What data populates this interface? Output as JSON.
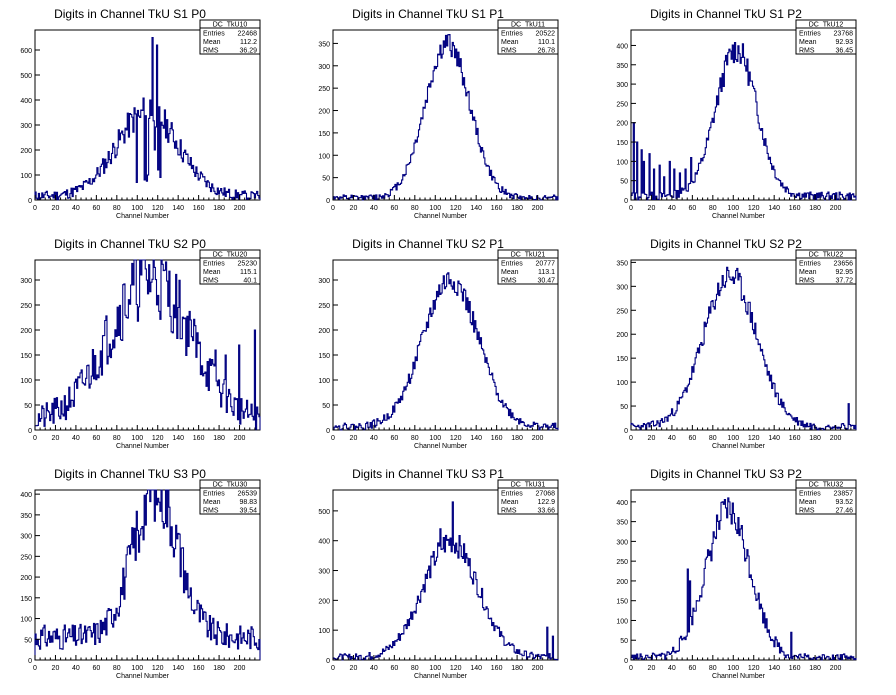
{
  "page": {
    "x_axis_label": "Channel Number",
    "stat_labels": [
      "Entries",
      "Mean",
      "RMS"
    ]
  },
  "chart_data": [
    {
      "type": "histogram",
      "title": "Digits in Channel TkU S1 P0",
      "xlabel": "Channel Number",
      "xlim": [
        0,
        220
      ],
      "ylim": [
        0,
        680
      ],
      "xticks": [
        0,
        20,
        40,
        60,
        80,
        100,
        120,
        140,
        160,
        180,
        200
      ],
      "yticks": [
        0,
        100,
        200,
        300,
        400,
        500,
        600
      ],
      "stats": {
        "name": "DC_TkU10",
        "entries": "22468",
        "mean": "112.2",
        "rms": "36.29"
      },
      "profile": {
        "shape": "gauss",
        "mu": 110,
        "sigma": 30,
        "peak": 340,
        "bg": 15,
        "noise": 45,
        "seed": 11,
        "spikes": [
          [
            100,
            70
          ],
          [
            103,
            330
          ],
          [
            107,
            80
          ],
          [
            109,
            75
          ],
          [
            111,
            100
          ],
          [
            113,
            400
          ],
          [
            115,
            650
          ],
          [
            117,
            200
          ],
          [
            119,
            620
          ],
          [
            121,
            120
          ],
          [
            123,
            90
          ]
        ]
      }
    },
    {
      "type": "histogram",
      "title": "Digits in Channel TkU S1 P1",
      "xlabel": "Channel Number",
      "xlim": [
        0,
        220
      ],
      "ylim": [
        0,
        380
      ],
      "xticks": [
        0,
        20,
        40,
        60,
        80,
        100,
        120,
        140,
        160,
        180,
        200
      ],
      "yticks": [
        0,
        50,
        100,
        150,
        200,
        250,
        300,
        350
      ],
      "stats": {
        "name": "DC_TkU11",
        "entries": "20522",
        "mean": "110.1",
        "rms": "26.78"
      },
      "profile": {
        "shape": "gauss",
        "mu": 112,
        "sigma": 22,
        "peak": 345,
        "bg": 4,
        "noise": 18,
        "seed": 12,
        "spikes": []
      }
    },
    {
      "type": "histogram",
      "title": "Digits in Channel TkU S1 P2",
      "xlabel": "Channel Number",
      "xlim": [
        0,
        220
      ],
      "ylim": [
        0,
        440
      ],
      "xticks": [
        0,
        20,
        40,
        60,
        80,
        100,
        120,
        140,
        160,
        180,
        200
      ],
      "yticks": [
        0,
        50,
        100,
        150,
        200,
        250,
        300,
        350,
        400
      ],
      "stats": {
        "name": "DC_TkU12",
        "entries": "23768",
        "mean": "92.93",
        "rms": "36.45"
      },
      "profile": {
        "shape": "gauss",
        "mu": 103,
        "sigma": 20,
        "peak": 380,
        "bg": 10,
        "noise": 25,
        "seed": 13,
        "spikes": [
          [
            3,
            200
          ],
          [
            6,
            150
          ],
          [
            10,
            130
          ],
          [
            13,
            100
          ],
          [
            18,
            120
          ],
          [
            22,
            80
          ],
          [
            28,
            90
          ],
          [
            33,
            60
          ],
          [
            38,
            100
          ],
          [
            42,
            80
          ],
          [
            48,
            70
          ],
          [
            53,
            80
          ],
          [
            59,
            110
          ]
        ]
      }
    },
    {
      "type": "histogram",
      "title": "Digits in Channel TkU S2 P0",
      "xlabel": "Channel Number",
      "xlim": [
        0,
        220
      ],
      "ylim": [
        0,
        340
      ],
      "xticks": [
        0,
        20,
        40,
        60,
        80,
        100,
        120,
        140,
        160,
        180,
        200
      ],
      "yticks": [
        0,
        50,
        100,
        150,
        200,
        250,
        300
      ],
      "stats": {
        "name": "DC_TkU20",
        "entries": "25230",
        "mean": "115.1",
        "rms": "40.1"
      },
      "profile": {
        "shape": "gauss",
        "mu": 112,
        "sigma": 40,
        "peak": 290,
        "bg": 15,
        "noise": 55,
        "seed": 21,
        "spikes": [
          [
            94,
            290
          ],
          [
            104,
            310
          ],
          [
            136,
            250
          ],
          [
            152,
            220
          ],
          [
            176,
            160
          ],
          [
            186,
            150
          ],
          [
            200,
            170
          ],
          [
            215,
            200
          ]
        ]
      }
    },
    {
      "type": "histogram",
      "title": "Digits in Channel TkU S2 P1",
      "xlabel": "Channel Number",
      "xlim": [
        0,
        220
      ],
      "ylim": [
        0,
        340
      ],
      "xticks": [
        0,
        20,
        40,
        60,
        80,
        100,
        120,
        140,
        160,
        180,
        200
      ],
      "yticks": [
        0,
        50,
        100,
        150,
        200,
        250,
        300
      ],
      "stats": {
        "name": "DC_TkU21",
        "entries": "20777",
        "mean": "113.1",
        "rms": "30.47"
      },
      "profile": {
        "shape": "gauss",
        "mu": 115,
        "sigma": 27,
        "peak": 295,
        "bg": 6,
        "noise": 18,
        "seed": 22,
        "spikes": []
      }
    },
    {
      "type": "histogram",
      "title": "Digits in Channel TkU S2 P2",
      "xlabel": "Channel Number",
      "xlim": [
        0,
        220
      ],
      "ylim": [
        0,
        355
      ],
      "xticks": [
        0,
        20,
        40,
        60,
        80,
        100,
        120,
        140,
        160,
        180,
        200
      ],
      "yticks": [
        0,
        50,
        100,
        150,
        200,
        250,
        300,
        350
      ],
      "stats": {
        "name": "DC_TkU22",
        "entries": "23656",
        "mean": "92.95",
        "rms": "37.72"
      },
      "profile": {
        "shape": "gauss",
        "mu": 97,
        "sigma": 26,
        "peak": 315,
        "bg": 6,
        "noise": 20,
        "seed": 23,
        "spikes": [
          [
            213,
            55
          ]
        ]
      }
    },
    {
      "type": "histogram",
      "title": "Digits in Channel TkU S3 P0",
      "xlabel": "Channel Number",
      "xlim": [
        0,
        220
      ],
      "ylim": [
        0,
        410
      ],
      "xticks": [
        0,
        20,
        40,
        60,
        80,
        100,
        120,
        140,
        160,
        180,
        200
      ],
      "yticks": [
        0,
        50,
        100,
        150,
        200,
        250,
        300,
        350,
        400
      ],
      "stats": {
        "name": "DC_TkU30",
        "entries": "26539",
        "mean": "98.83",
        "rms": "39.54"
      },
      "profile": {
        "shape": "gauss",
        "mu": 118,
        "sigma": 22,
        "peak": 360,
        "bg": 55,
        "noise": 55,
        "seed": 31,
        "spikes": [
          [
            102,
            260
          ],
          [
            121,
            390
          ],
          [
            143,
            270
          ],
          [
            150,
            150
          ],
          [
            155,
            120
          ]
        ]
      }
    },
    {
      "type": "histogram",
      "title": "Digits in Channel TkU S3 P1",
      "xlabel": "Channel Number",
      "xlim": [
        0,
        220
      ],
      "ylim": [
        0,
        570
      ],
      "xticks": [
        0,
        20,
        40,
        60,
        80,
        100,
        120,
        140,
        160,
        180,
        200
      ],
      "yticks": [
        0,
        100,
        200,
        300,
        400,
        500
      ],
      "stats": {
        "name": "DC_TkU31",
        "entries": "27068",
        "mean": "122.9",
        "rms": "33.66"
      },
      "profile": {
        "shape": "gauss",
        "mu": 115,
        "sigma": 27,
        "peak": 390,
        "bg": 8,
        "noise": 30,
        "seed": 32,
        "spikes": [
          [
            105,
            440
          ],
          [
            117,
            530
          ],
          [
            210,
            110
          ],
          [
            215,
            80
          ]
        ]
      }
    },
    {
      "type": "histogram",
      "title": "Digits in Channel TkU S3 P2",
      "xlabel": "Channel Number",
      "xlim": [
        0,
        220
      ],
      "ylim": [
        0,
        430
      ],
      "xticks": [
        0,
        20,
        40,
        60,
        80,
        100,
        120,
        140,
        160,
        180,
        200
      ],
      "yticks": [
        0,
        50,
        100,
        150,
        200,
        250,
        300,
        350,
        400
      ],
      "stats": {
        "name": "DC_TkU32",
        "entries": "23857",
        "mean": "93.52",
        "rms": "27.46"
      },
      "profile": {
        "shape": "gauss",
        "mu": 95,
        "sigma": 22,
        "peak": 370,
        "bg": 4,
        "noise": 30,
        "seed": 33,
        "spikes": [
          [
            56,
            230
          ],
          [
            58,
            200
          ],
          [
            95,
            410
          ],
          [
            157,
            70
          ]
        ]
      }
    }
  ]
}
